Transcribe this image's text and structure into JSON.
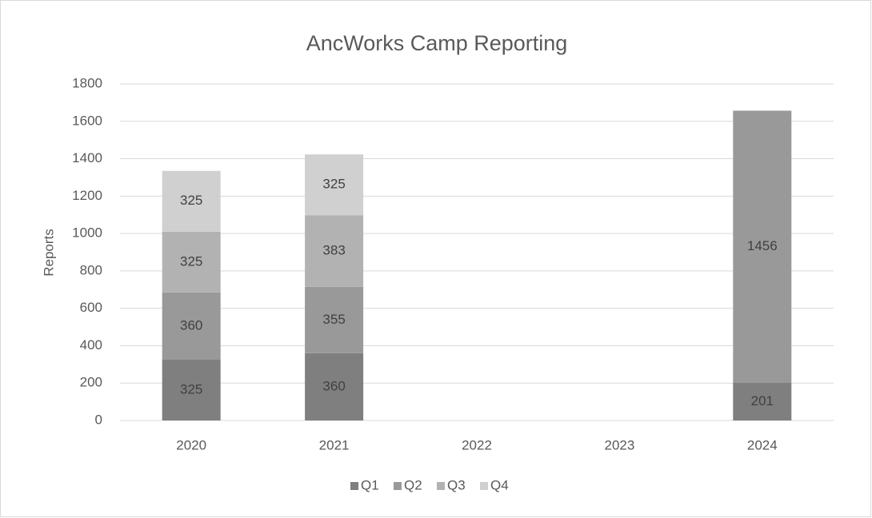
{
  "chart_data": {
    "type": "bar",
    "stacked": true,
    "title": "AncWorks Camp Reporting",
    "y_label": "Reports",
    "categories": [
      "2020",
      "2021",
      "2022",
      "2023",
      "2024"
    ],
    "series": [
      {
        "name": "Q1",
        "color": "#7f7f7f",
        "values": [
          325,
          360,
          null,
          null,
          201
        ]
      },
      {
        "name": "Q2",
        "color": "#999999",
        "values": [
          360,
          355,
          null,
          null,
          1456
        ]
      },
      {
        "name": "Q3",
        "color": "#b2b2b2",
        "values": [
          325,
          383,
          null,
          null,
          null
        ]
      },
      {
        "name": "Q4",
        "color": "#d0d0d0",
        "values": [
          325,
          325,
          null,
          null,
          null
        ]
      }
    ],
    "ylim": [
      0,
      1800
    ],
    "yticks": [
      0,
      200,
      400,
      600,
      800,
      1000,
      1200,
      1400,
      1600,
      1800
    ],
    "grid": true,
    "legend": "bottom"
  }
}
